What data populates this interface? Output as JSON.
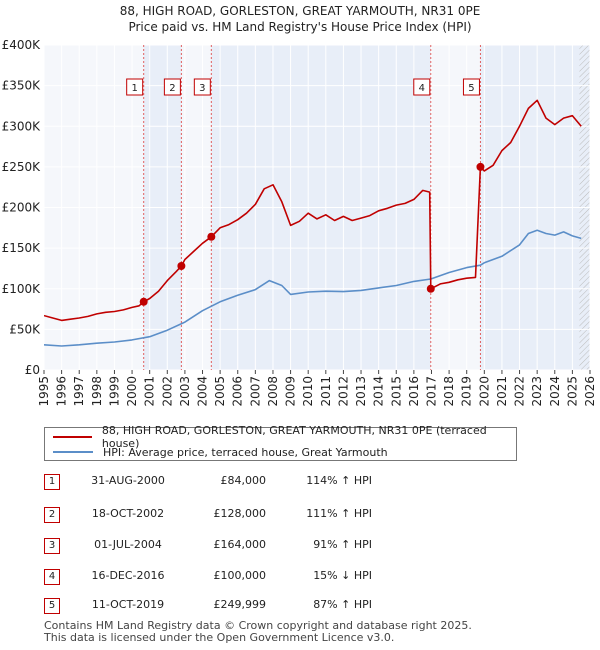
{
  "chart_data": {
    "type": "line",
    "title": "88, HIGH ROAD, GORLESTON, GREAT YARMOUTH, NR31 0PE",
    "subtitle": "Price paid vs. HM Land Registry's House Price Index (HPI)",
    "xlim": [
      1995,
      2026
    ],
    "ylim": [
      0,
      400000
    ],
    "x_ticks": [
      "1995",
      "1996",
      "1997",
      "1998",
      "1999",
      "2000",
      "2001",
      "2002",
      "2003",
      "2004",
      "2005",
      "2006",
      "2007",
      "2008",
      "2009",
      "2010",
      "2011",
      "2012",
      "2013",
      "2014",
      "2015",
      "2016",
      "2017",
      "2018",
      "2019",
      "2020",
      "2021",
      "2022",
      "2023",
      "2024",
      "2025",
      "2026"
    ],
    "y_ticks": [
      {
        "value": 0,
        "label": "£0"
      },
      {
        "value": 50000,
        "label": "£50K"
      },
      {
        "value": 100000,
        "label": "£100K"
      },
      {
        "value": 150000,
        "label": "£150K"
      },
      {
        "value": 200000,
        "label": "£200K"
      },
      {
        "value": 250000,
        "label": "£250K"
      },
      {
        "value": 300000,
        "label": "£300K"
      },
      {
        "value": 350000,
        "label": "£350K"
      },
      {
        "value": 400000,
        "label": "£400K"
      }
    ],
    "shaded_spans": [
      [
        2000.66,
        2002.8
      ],
      [
        2004.5,
        2016.96
      ],
      [
        2019.78,
        2026
      ]
    ],
    "hatched_future_from": 2025.4,
    "series": [
      {
        "name": "88, HIGH ROAD, GORLESTON, GREAT YARMOUTH, NR31 0PE (terraced house)",
        "color": "#c00000",
        "points": [
          [
            1995,
            67000
          ],
          [
            1995.5,
            64000
          ],
          [
            1996,
            61000
          ],
          [
            1996.5,
            62500
          ],
          [
            1997,
            64000
          ],
          [
            1997.5,
            66000
          ],
          [
            1998,
            69000
          ],
          [
            1998.5,
            71000
          ],
          [
            1999,
            72000
          ],
          [
            1999.5,
            74000
          ],
          [
            2000,
            77000
          ],
          [
            2000.4,
            79000
          ],
          [
            2000.66,
            84000
          ],
          [
            2001,
            88000
          ],
          [
            2001.5,
            97000
          ],
          [
            2002,
            110000
          ],
          [
            2002.5,
            121000
          ],
          [
            2002.8,
            128000
          ],
          [
            2003,
            136000
          ],
          [
            2003.5,
            146000
          ],
          [
            2004,
            156000
          ],
          [
            2004.5,
            164000
          ],
          [
            2005,
            175000
          ],
          [
            2005.5,
            179000
          ],
          [
            2006,
            185000
          ],
          [
            2006.5,
            193000
          ],
          [
            2007,
            204000
          ],
          [
            2007.5,
            223000
          ],
          [
            2008,
            228000
          ],
          [
            2008.5,
            207000
          ],
          [
            2009,
            178000
          ],
          [
            2009.5,
            183000
          ],
          [
            2010,
            193000
          ],
          [
            2010.5,
            186000
          ],
          [
            2011,
            191000
          ],
          [
            2011.5,
            184000
          ],
          [
            2012,
            189000
          ],
          [
            2012.5,
            184000
          ],
          [
            2013,
            187000
          ],
          [
            2013.5,
            190000
          ],
          [
            2014,
            196000
          ],
          [
            2014.5,
            199000
          ],
          [
            2015,
            203000
          ],
          [
            2015.5,
            205000
          ],
          [
            2016,
            210000
          ],
          [
            2016.5,
            221000
          ],
          [
            2016.9,
            219000
          ],
          [
            2016.96,
            100000
          ],
          [
            2017.5,
            106000
          ],
          [
            2018,
            108000
          ],
          [
            2018.5,
            111000
          ],
          [
            2019,
            113000
          ],
          [
            2019.5,
            114000
          ],
          [
            2019.78,
            249999
          ],
          [
            2020,
            245000
          ],
          [
            2020.5,
            252000
          ],
          [
            2021,
            270000
          ],
          [
            2021.5,
            280000
          ],
          [
            2022,
            300000
          ],
          [
            2022.5,
            322000
          ],
          [
            2023,
            332000
          ],
          [
            2023.5,
            310000
          ],
          [
            2024,
            302000
          ],
          [
            2024.5,
            310000
          ],
          [
            2025,
            313000
          ],
          [
            2025.5,
            300000
          ]
        ]
      },
      {
        "name": "HPI: Average price, terraced house, Great Yarmouth",
        "color": "#5b8ec8",
        "points": [
          [
            1995,
            31000
          ],
          [
            1996,
            29500
          ],
          [
            1997,
            31000
          ],
          [
            1998,
            33000
          ],
          [
            1999,
            34500
          ],
          [
            2000,
            37000
          ],
          [
            2001,
            41000
          ],
          [
            2002,
            49000
          ],
          [
            2003,
            59000
          ],
          [
            2004,
            73000
          ],
          [
            2005,
            84000
          ],
          [
            2006,
            92000
          ],
          [
            2007,
            99000
          ],
          [
            2007.8,
            110000
          ],
          [
            2008.5,
            104000
          ],
          [
            2009,
            93000
          ],
          [
            2010,
            96000
          ],
          [
            2011,
            97000
          ],
          [
            2012,
            96500
          ],
          [
            2013,
            98000
          ],
          [
            2014,
            101000
          ],
          [
            2015,
            104000
          ],
          [
            2016,
            109000
          ],
          [
            2016.96,
            112000
          ],
          [
            2018,
            120000
          ],
          [
            2019,
            126000
          ],
          [
            2019.78,
            129000
          ],
          [
            2020,
            132000
          ],
          [
            2021,
            140000
          ],
          [
            2022,
            154000
          ],
          [
            2022.5,
            168000
          ],
          [
            2023,
            172000
          ],
          [
            2023.5,
            168000
          ],
          [
            2024,
            166000
          ],
          [
            2024.5,
            170000
          ],
          [
            2025,
            165000
          ],
          [
            2025.5,
            162000
          ]
        ]
      }
    ],
    "sales": [
      {
        "label": "1",
        "x": 2000.66,
        "price": 84000,
        "date": "31-AUG-2000",
        "price_label": "£84,000",
        "hpi": "114% ↑ HPI"
      },
      {
        "label": "2",
        "x": 2002.8,
        "price": 128000,
        "date": "18-OCT-2002",
        "price_label": "£128,000",
        "hpi": "111% ↑ HPI"
      },
      {
        "label": "3",
        "x": 2004.5,
        "price": 164000,
        "date": "01-JUL-2004",
        "price_label": "£164,000",
        "hpi": "91% ↑ HPI"
      },
      {
        "label": "4",
        "x": 2016.96,
        "price": 100000,
        "date": "16-DEC-2016",
        "price_label": "£100,000",
        "hpi": "15% ↓ HPI"
      },
      {
        "label": "5",
        "x": 2019.78,
        "price": 249999,
        "date": "11-OCT-2019",
        "price_label": "£249,999",
        "hpi": "87% ↑ HPI"
      }
    ]
  },
  "legend": {
    "property_label": "88, HIGH ROAD, GORLESTON, GREAT YARMOUTH, NR31 0PE (terraced house)",
    "hpi_label": "HPI: Average price, terraced house, Great Yarmouth"
  },
  "footer": {
    "line1": "Contains HM Land Registry data © Crown copyright and database right 2025.",
    "line2": "This data is licensed under the Open Government Licence v3.0."
  },
  "colors": {
    "property": "#c00000",
    "hpi": "#5b8ec8",
    "shade": "#e8eef8",
    "plot_bg": "#f5f7fb"
  }
}
